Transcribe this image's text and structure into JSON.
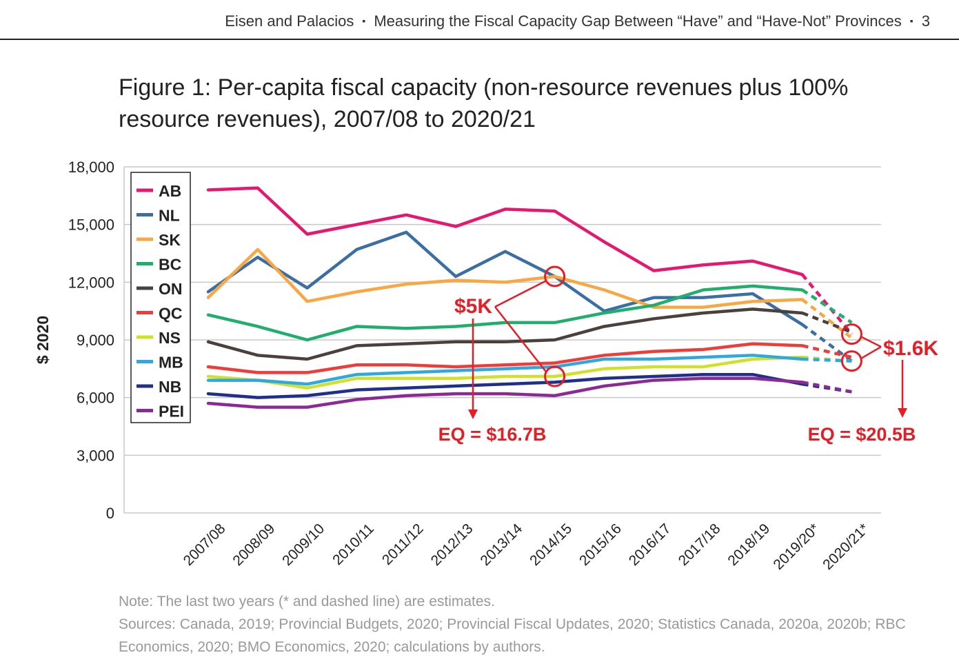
{
  "header": {
    "authors": "Eisen and Palacios",
    "separator": "▪",
    "running_title": "Measuring the Fiscal Capacity Gap Between “Have” and “Have-Not” Provinces",
    "page_number": "3"
  },
  "figure": {
    "title": "Figure 1: Per-capita fiscal capacity (non-resource revenues plus 100% resource revenues), 2007/08 to 2020/21",
    "note": "Note: The last two years (* and dashed line) are estimates.",
    "sources": "Sources: Canada, 2019; Provincial Budgets, 2020; Provincial Fiscal Updates, 2020; Statistics Canada, 2020a, 2020b; RBC Economics, 2020; BMO Economics, 2020; calculations by authors."
  },
  "chart_data": {
    "type": "line",
    "title": "Figure 1: Per-capita fiscal capacity (non-resource revenues plus 100% resource revenues), 2007/08 to 2020/21",
    "ylabel": "$ 2020",
    "xlabel": "",
    "ylim": [
      0,
      18000
    ],
    "yticks": [
      0,
      3000,
      6000,
      9000,
      12000,
      15000,
      18000
    ],
    "ytick_labels": [
      "0",
      "3,000",
      "6,000",
      "9,000",
      "12,000",
      "15,000",
      "18,000"
    ],
    "grid": true,
    "legend_position": "top-left",
    "estimate_start_index": 12,
    "categories": [
      "2007/08",
      "2008/09",
      "2009/10",
      "2010/11",
      "2011/12",
      "2012/13",
      "2013/14",
      "2014/15",
      "2015/16",
      "2016/17",
      "2017/18",
      "2018/19",
      "2019/20*",
      "2020/21*"
    ],
    "series": [
      {
        "name": "AB",
        "color": "#e5176f",
        "values": [
          16800,
          16900,
          14500,
          15000,
          15500,
          14900,
          15800,
          15700,
          14100,
          12600,
          12900,
          13100,
          12400,
          9300
        ]
      },
      {
        "name": "NL",
        "color": "#3b6ea5",
        "values": [
          11500,
          13300,
          11700,
          13700,
          14600,
          12300,
          13600,
          12300,
          10500,
          11200,
          11200,
          11400,
          9800,
          7900
        ]
      },
      {
        "name": "SK",
        "color": "#f9a743",
        "values": [
          11200,
          13700,
          11000,
          11500,
          11900,
          12100,
          12000,
          12300,
          11600,
          10700,
          10700,
          11000,
          11100,
          9100
        ]
      },
      {
        "name": "BC",
        "color": "#1fae6c",
        "values": [
          10300,
          9700,
          9000,
          9700,
          9600,
          9700,
          9900,
          9900,
          10400,
          10800,
          11600,
          11800,
          11600,
          9900
        ]
      },
      {
        "name": "ON",
        "color": "#4a413c",
        "values": [
          8900,
          8200,
          8000,
          8700,
          8800,
          8900,
          8900,
          9000,
          9700,
          10100,
          10400,
          10600,
          10400,
          9400
        ]
      },
      {
        "name": "QC",
        "color": "#ee3d38",
        "values": [
          7600,
          7300,
          7300,
          7700,
          7700,
          7600,
          7700,
          7800,
          8200,
          8400,
          8500,
          8800,
          8700,
          8100
        ]
      },
      {
        "name": "NS",
        "color": "#cfe12a",
        "values": [
          7100,
          6900,
          6500,
          7000,
          7000,
          7000,
          7100,
          7100,
          7500,
          7600,
          7600,
          8000,
          8100,
          7900
        ]
      },
      {
        "name": "MB",
        "color": "#2fa8e0",
        "values": [
          6900,
          6900,
          6700,
          7200,
          7300,
          7400,
          7500,
          7600,
          8000,
          8000,
          8100,
          8200,
          8000,
          7900
        ]
      },
      {
        "name": "NB",
        "color": "#1f2f8c",
        "values": [
          6200,
          6000,
          6100,
          6400,
          6500,
          6600,
          6700,
          6800,
          7000,
          7100,
          7200,
          7200,
          6700,
          6300
        ]
      },
      {
        "name": "PEI",
        "color": "#8b2a96",
        "values": [
          5700,
          5500,
          5500,
          5900,
          6100,
          6200,
          6200,
          6100,
          6600,
          6900,
          7000,
          7000,
          6800,
          6300
        ]
      }
    ],
    "annotations": {
      "gap_2014": "$5K",
      "eq_2014": "EQ = $16.7B",
      "gap_2020": "$1.6K",
      "eq_2020": "EQ = $20.5B",
      "color": "#e31e25"
    }
  }
}
